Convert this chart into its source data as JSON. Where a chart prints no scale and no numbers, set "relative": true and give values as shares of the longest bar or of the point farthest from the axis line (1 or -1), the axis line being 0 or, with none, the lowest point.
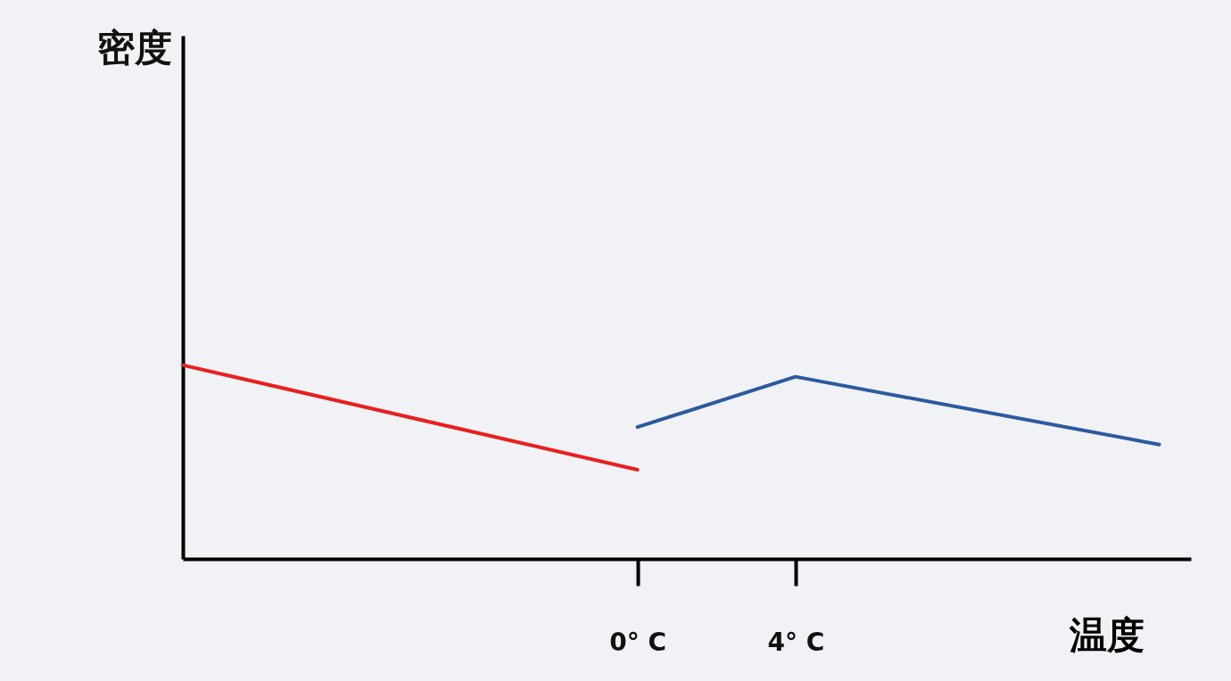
{
  "chart_data": {
    "type": "line",
    "relative": true,
    "xlabel": "温度",
    "annotations": [
      "密度"
    ],
    "xlim": [
      -11.5,
      14
    ],
    "xticks": [
      {
        "value": 0,
        "label": "0° C"
      },
      {
        "value": 4,
        "label": "4° C"
      }
    ],
    "series": [
      {
        "color": "#e8201e",
        "x": [
          -11.5,
          0
        ],
        "values": [
          1,
          0.46
        ]
      },
      {
        "color": "#2b5a9e",
        "x": [
          0,
          4,
          13.2
        ],
        "values": [
          0.68,
          0.94,
          0.59
        ]
      }
    ]
  }
}
